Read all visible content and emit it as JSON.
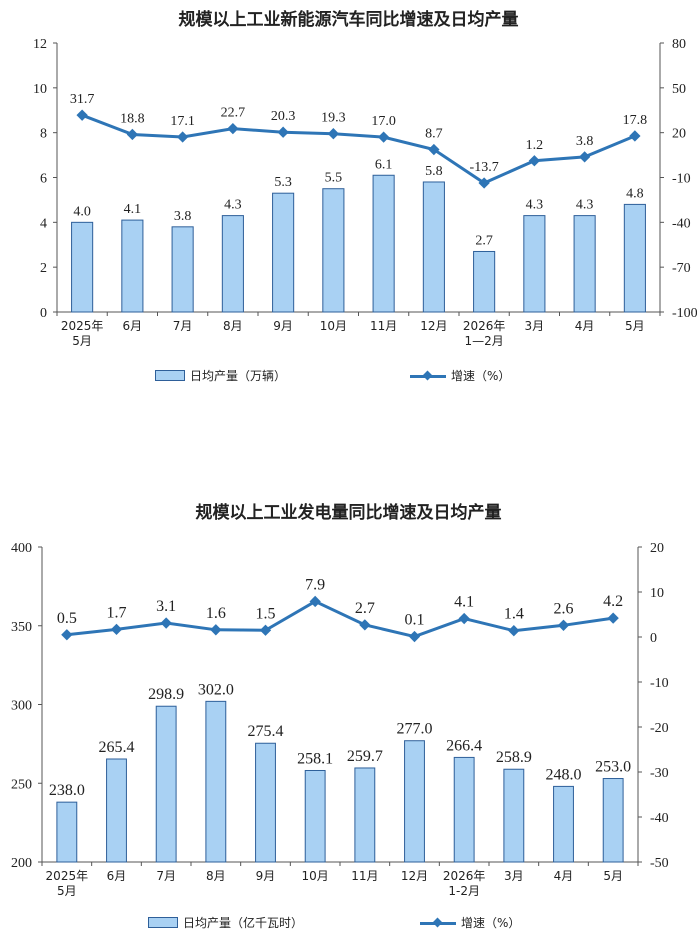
{
  "charts": [
    {
      "title": "规模以上工业新能源汽车同比增速及日均产量",
      "legend_bar": "日均产量（万辆）",
      "legend_line": "增速（%）"
    },
    {
      "title": "规模以上工业发电量同比增速及日均产量",
      "legend_bar": "日均产量（亿千瓦时）",
      "legend_line": "增速（%）"
    }
  ],
  "chart_data": [
    {
      "type": "bar",
      "title": "规模以上工业新能源汽车同比增速及日均产量",
      "categories": [
        "2025年\n5月",
        "6月",
        "7月",
        "8月",
        "9月",
        "10月",
        "11月",
        "12月",
        "2026年\n1—2月",
        "3月",
        "4月",
        "5月"
      ],
      "series": [
        {
          "name": "日均产量（万辆）",
          "type": "bar",
          "axis": "left",
          "values": [
            4.0,
            4.1,
            3.8,
            4.3,
            5.3,
            5.5,
            6.1,
            5.8,
            2.7,
            4.3,
            4.3,
            4.8
          ]
        },
        {
          "name": "增速（%）",
          "type": "line",
          "axis": "right",
          "values": [
            31.7,
            18.8,
            17.1,
            22.7,
            20.3,
            19.3,
            17.0,
            8.7,
            -13.7,
            1.2,
            3.8,
            17.8
          ]
        }
      ],
      "y_left": {
        "min": 0,
        "max": 12,
        "ticks": [
          0,
          2,
          4,
          6,
          8,
          10,
          12
        ]
      },
      "y_right": {
        "min": -100,
        "max": 80,
        "ticks": [
          -100,
          -70,
          -40,
          -10,
          20,
          50,
          80
        ]
      },
      "bar_color": "#a9d1f3",
      "bar_border": "#2e5f99",
      "line_color": "#2e75b6",
      "legend_position": "bottom"
    },
    {
      "type": "bar",
      "title": "规模以上工业发电量同比增速及日均产量",
      "categories": [
        "2025年\n5月",
        "6月",
        "7月",
        "8月",
        "9月",
        "10月",
        "11月",
        "12月",
        "2026年\n1-2月",
        "3月",
        "4月",
        "5月"
      ],
      "series": [
        {
          "name": "日均产量（亿千瓦时）",
          "type": "bar",
          "axis": "left",
          "values": [
            238.0,
            265.4,
            298.9,
            302.0,
            275.4,
            258.1,
            259.7,
            277.0,
            266.4,
            258.9,
            248.0,
            253.0
          ]
        },
        {
          "name": "增速（%）",
          "type": "line",
          "axis": "right",
          "values": [
            0.5,
            1.7,
            3.1,
            1.6,
            1.5,
            7.9,
            2.7,
            0.1,
            4.1,
            1.4,
            2.6,
            4.2
          ]
        }
      ],
      "y_left": {
        "min": 200,
        "max": 400,
        "ticks": [
          200,
          250,
          300,
          350,
          400
        ]
      },
      "y_right": {
        "min": -50,
        "max": 20,
        "ticks": [
          -50,
          -40,
          -30,
          -20,
          -10,
          0,
          10,
          20
        ]
      },
      "bar_color": "#a9d1f3",
      "bar_border": "#2e5f99",
      "line_color": "#2e75b6",
      "legend_position": "bottom"
    }
  ]
}
